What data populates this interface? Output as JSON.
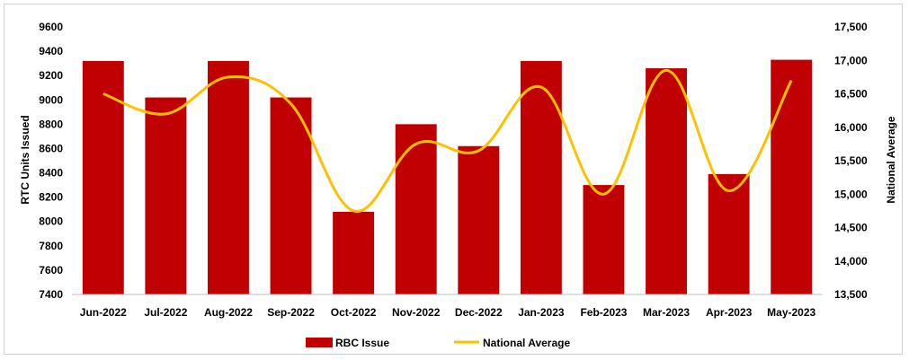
{
  "chart_data": {
    "type": "bar",
    "categories": [
      "Jun-2022",
      "Jul-2022",
      "Aug-2022",
      "Sep-2022",
      "Oct-2022",
      "Nov-2022",
      "Dec-2022",
      "Jan-2023",
      "Feb-2023",
      "Mar-2023",
      "Apr-2023",
      "May-2023"
    ],
    "series": [
      {
        "name": "RBC Issue",
        "type": "bar",
        "axis": "left",
        "color": "#c00000",
        "values": [
          9320,
          9020,
          9320,
          9020,
          8080,
          8800,
          8620,
          9320,
          8300,
          9260,
          8390,
          9330
        ]
      },
      {
        "name": "National Average",
        "type": "line",
        "axis": "right",
        "color": "#ffc000",
        "values": [
          16500,
          16200,
          16750,
          16350,
          14750,
          15750,
          15650,
          16600,
          15000,
          16850,
          15050,
          16700
        ]
      }
    ],
    "ylabel": "RTC Units Issued",
    "y2label": "National Average",
    "ylim": [
      7400,
      9600
    ],
    "y2lim": [
      13500,
      17500
    ],
    "yticks": [
      "9600",
      "9400",
      "9200",
      "9000",
      "8800",
      "8600",
      "8400",
      "8200",
      "8000",
      "7800",
      "7600",
      "7400"
    ],
    "y2ticks": [
      "17,500",
      "17,000",
      "16,500",
      "16,000",
      "15,500",
      "15,000",
      "14,500",
      "14,000",
      "13,500"
    ],
    "grid": false,
    "legend": "bottom"
  }
}
